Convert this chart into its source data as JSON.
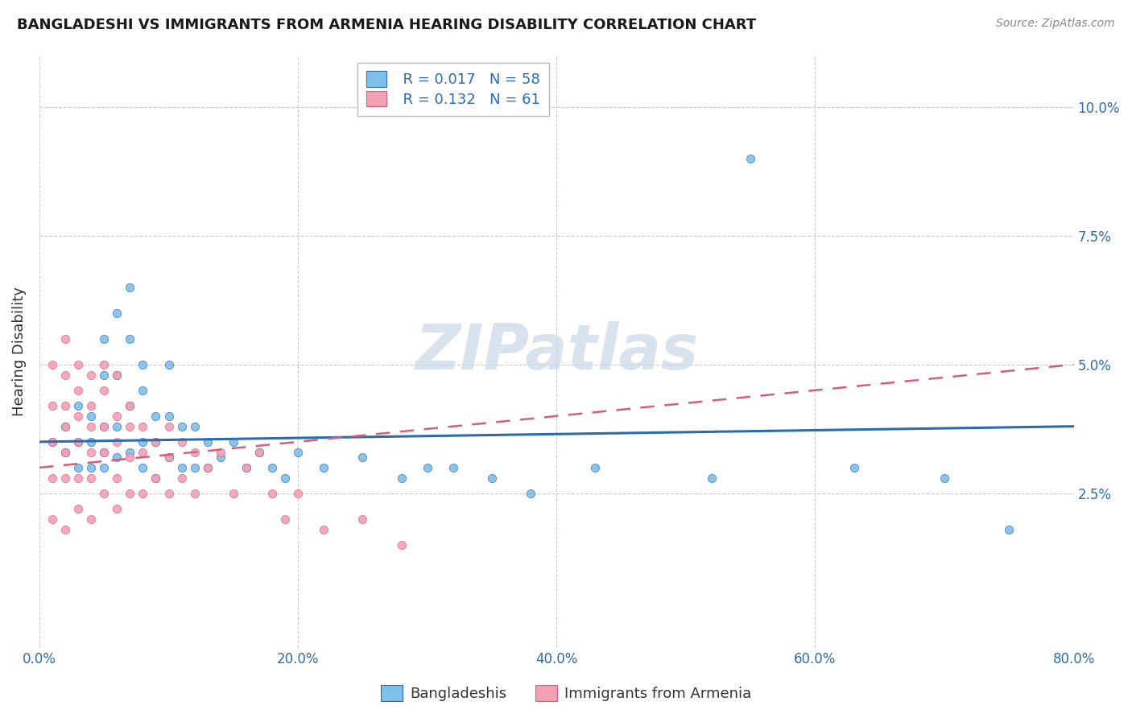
{
  "title": "BANGLADESHI VS IMMIGRANTS FROM ARMENIA HEARING DISABILITY CORRELATION CHART",
  "source": "Source: ZipAtlas.com",
  "ylabel": "Hearing Disability",
  "legend_blue_label": "Bangladeshis",
  "legend_pink_label": "Immigrants from Armenia",
  "legend_blue_r": "R = 0.017",
  "legend_blue_n": "N = 58",
  "legend_pink_r": "R = 0.132",
  "legend_pink_n": "N = 61",
  "watermark": "ZIPatlas",
  "blue_color": "#7fbfea",
  "pink_color": "#f4a0b5",
  "trend_blue_color": "#2b6cb0",
  "trend_pink_color": "#d45f7a",
  "title_color": "#1a1a1a",
  "axis_label_color": "#333333",
  "tick_color": "#2b6cb0",
  "background_color": "#ffffff",
  "grid_color": "#cccccc",
  "xlim": [
    0.0,
    0.8
  ],
  "ylim": [
    -0.005,
    0.11
  ],
  "blue_scatter_x": [
    0.01,
    0.02,
    0.02,
    0.03,
    0.03,
    0.03,
    0.04,
    0.04,
    0.04,
    0.05,
    0.05,
    0.05,
    0.05,
    0.05,
    0.06,
    0.06,
    0.06,
    0.06,
    0.07,
    0.07,
    0.07,
    0.07,
    0.08,
    0.08,
    0.08,
    0.08,
    0.09,
    0.09,
    0.09,
    0.1,
    0.1,
    0.1,
    0.11,
    0.11,
    0.12,
    0.12,
    0.13,
    0.13,
    0.14,
    0.15,
    0.16,
    0.17,
    0.18,
    0.19,
    0.2,
    0.22,
    0.25,
    0.28,
    0.3,
    0.32,
    0.35,
    0.38,
    0.43,
    0.52,
    0.55,
    0.63,
    0.7,
    0.75
  ],
  "blue_scatter_y": [
    0.035,
    0.038,
    0.033,
    0.042,
    0.035,
    0.03,
    0.04,
    0.035,
    0.03,
    0.055,
    0.048,
    0.038,
    0.033,
    0.03,
    0.06,
    0.048,
    0.038,
    0.032,
    0.065,
    0.055,
    0.042,
    0.033,
    0.05,
    0.045,
    0.035,
    0.03,
    0.04,
    0.035,
    0.028,
    0.05,
    0.04,
    0.032,
    0.038,
    0.03,
    0.038,
    0.03,
    0.035,
    0.03,
    0.032,
    0.035,
    0.03,
    0.033,
    0.03,
    0.028,
    0.033,
    0.03,
    0.032,
    0.028,
    0.03,
    0.03,
    0.028,
    0.025,
    0.03,
    0.028,
    0.09,
    0.03,
    0.028,
    0.018
  ],
  "pink_scatter_x": [
    0.01,
    0.01,
    0.01,
    0.01,
    0.01,
    0.02,
    0.02,
    0.02,
    0.02,
    0.02,
    0.02,
    0.02,
    0.03,
    0.03,
    0.03,
    0.03,
    0.03,
    0.03,
    0.04,
    0.04,
    0.04,
    0.04,
    0.04,
    0.04,
    0.05,
    0.05,
    0.05,
    0.05,
    0.05,
    0.06,
    0.06,
    0.06,
    0.06,
    0.06,
    0.07,
    0.07,
    0.07,
    0.07,
    0.08,
    0.08,
    0.08,
    0.09,
    0.09,
    0.1,
    0.1,
    0.1,
    0.11,
    0.11,
    0.12,
    0.12,
    0.13,
    0.14,
    0.15,
    0.16,
    0.17,
    0.18,
    0.19,
    0.2,
    0.22,
    0.25,
    0.28
  ],
  "pink_scatter_y": [
    0.05,
    0.042,
    0.035,
    0.028,
    0.02,
    0.055,
    0.048,
    0.042,
    0.038,
    0.033,
    0.028,
    0.018,
    0.05,
    0.045,
    0.04,
    0.035,
    0.028,
    0.022,
    0.048,
    0.042,
    0.038,
    0.033,
    0.028,
    0.02,
    0.05,
    0.045,
    0.038,
    0.033,
    0.025,
    0.048,
    0.04,
    0.035,
    0.028,
    0.022,
    0.042,
    0.038,
    0.032,
    0.025,
    0.038,
    0.033,
    0.025,
    0.035,
    0.028,
    0.038,
    0.032,
    0.025,
    0.035,
    0.028,
    0.033,
    0.025,
    0.03,
    0.033,
    0.025,
    0.03,
    0.033,
    0.025,
    0.02,
    0.025,
    0.018,
    0.02,
    0.015
  ]
}
